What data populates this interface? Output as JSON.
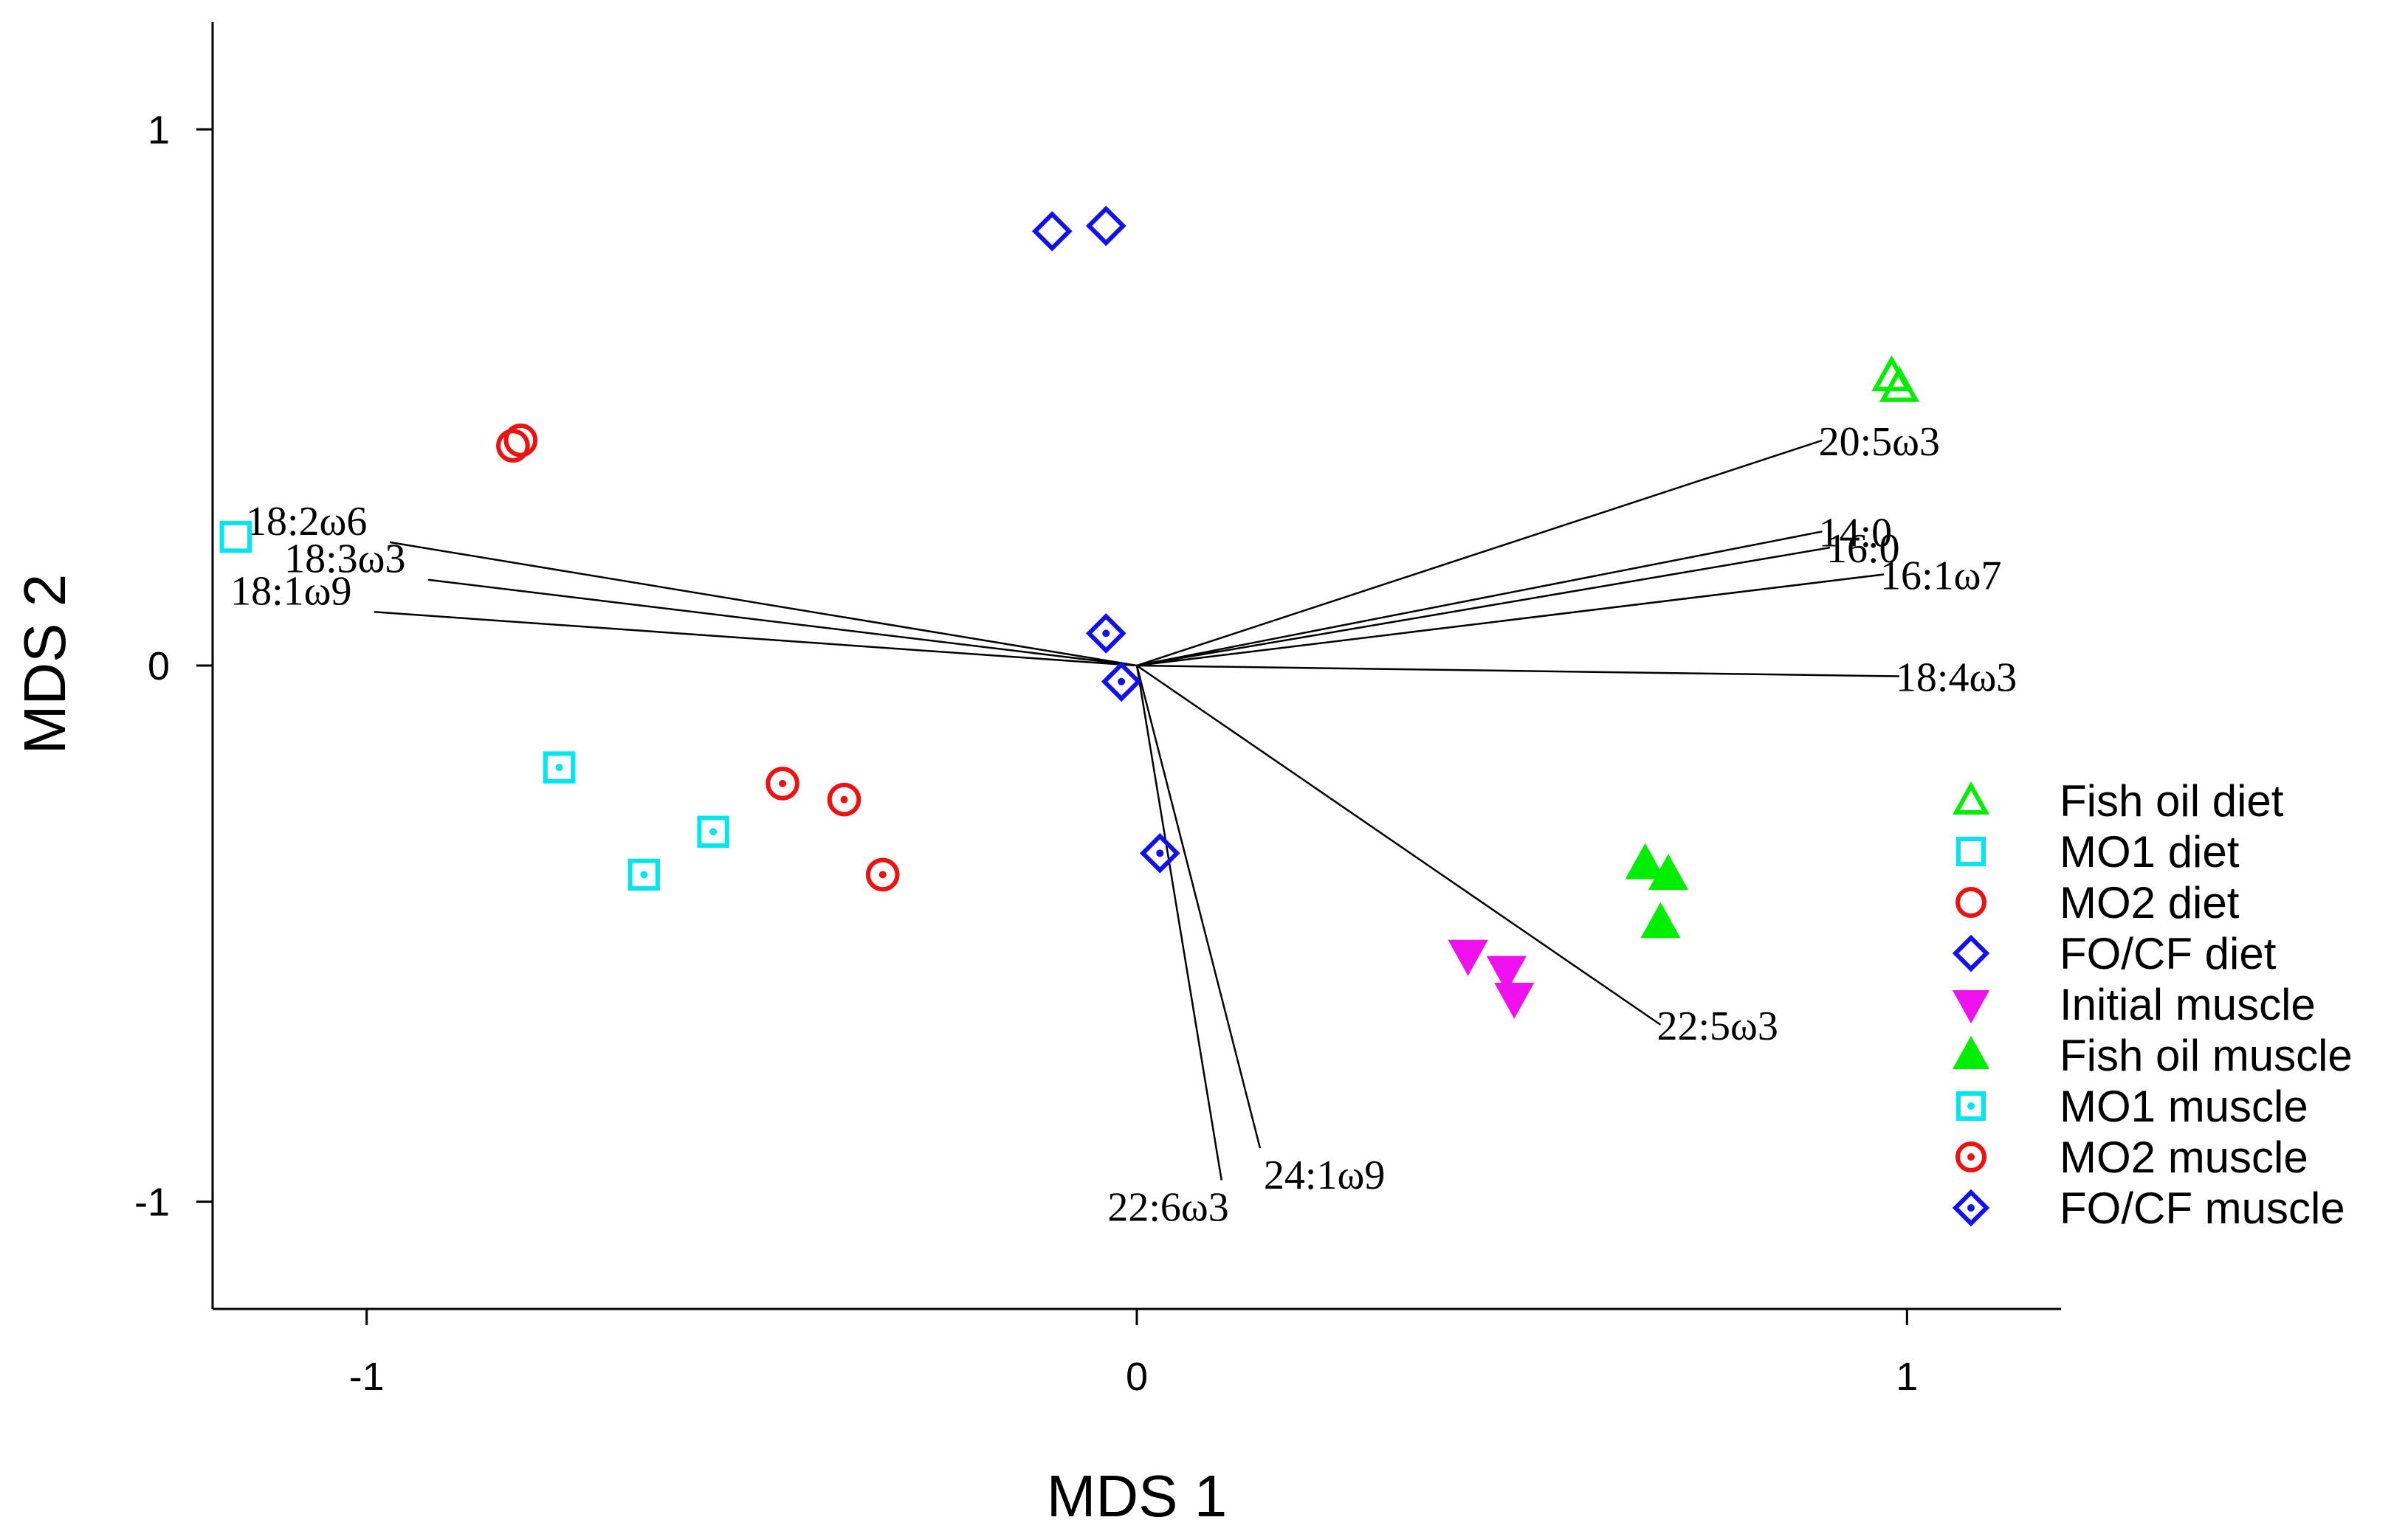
{
  "chart_data": {
    "type": "scatter",
    "title": "",
    "xlabel": "MDS 1",
    "ylabel": "MDS 2",
    "xlim": [
      -1.2,
      1.2
    ],
    "ylim": [
      -1.2,
      1.2
    ],
    "xticks": [
      {
        "value": -1,
        "label": "-1"
      },
      {
        "value": 0,
        "label": "0"
      },
      {
        "value": 1,
        "label": "1"
      }
    ],
    "yticks": [
      {
        "value": -1,
        "label": "-1"
      },
      {
        "value": 0,
        "label": "0"
      },
      {
        "value": 1,
        "label": "1"
      }
    ],
    "grid": false,
    "legend_position": "right",
    "series": [
      {
        "name": "Fish oil diet",
        "marker": "triangle-up",
        "filled": false,
        "color": "#00ee00",
        "points": [
          [
            0.98,
            0.54
          ],
          [
            0.99,
            0.52
          ]
        ]
      },
      {
        "name": "MO1 diet",
        "marker": "square",
        "filled": false,
        "color": "#00e5ee",
        "points": [
          [
            -1.17,
            0.24
          ]
        ]
      },
      {
        "name": "MO2 diet",
        "marker": "circle",
        "filled": false,
        "color": "#ee1111",
        "points": [
          [
            -0.81,
            0.41
          ],
          [
            -0.8,
            0.42
          ]
        ]
      },
      {
        "name": "FO/CF diet",
        "marker": "diamond",
        "filled": false,
        "color": "#1111ee",
        "points": [
          [
            -0.11,
            0.81
          ],
          [
            -0.04,
            0.82
          ]
        ]
      },
      {
        "name": "Initial muscle",
        "marker": "triangle-down",
        "filled": true,
        "color": "#ee11ee",
        "points": [
          [
            0.43,
            -0.54
          ],
          [
            0.48,
            -0.57
          ],
          [
            0.49,
            -0.62
          ]
        ]
      },
      {
        "name": "Fish oil muscle",
        "marker": "triangle-up",
        "filled": true,
        "color": "#00ee00",
        "points": [
          [
            0.66,
            -0.37
          ],
          [
            0.69,
            -0.39
          ],
          [
            0.68,
            -0.48
          ]
        ]
      },
      {
        "name": "MO1 muscle",
        "marker": "square-dot",
        "filled": false,
        "color": "#00e5ee",
        "points": [
          [
            -0.75,
            -0.19
          ],
          [
            -0.55,
            -0.31
          ],
          [
            -0.64,
            -0.39
          ]
        ]
      },
      {
        "name": "MO2 muscle",
        "marker": "circle-dot",
        "filled": false,
        "color": "#ee1111",
        "points": [
          [
            -0.46,
            -0.22
          ],
          [
            -0.38,
            -0.25
          ],
          [
            -0.33,
            -0.39
          ]
        ]
      },
      {
        "name": "FO/CF muscle",
        "marker": "diamond-dot",
        "filled": false,
        "color": "#1111ee",
        "points": [
          [
            -0.04,
            0.06
          ],
          [
            -0.02,
            -0.03
          ],
          [
            0.03,
            -0.35
          ]
        ]
      }
    ],
    "vectors": [
      {
        "label": "20:5ω3",
        "x": 0.89,
        "y": 0.42
      },
      {
        "label": "14:0",
        "x": 0.89,
        "y": 0.25
      },
      {
        "label": "16:0",
        "x": 0.9,
        "y": 0.22
      },
      {
        "label": "16:1ω7",
        "x": 0.97,
        "y": 0.17
      },
      {
        "label": "18:4ω3",
        "x": 0.99,
        "y": -0.02
      },
      {
        "label": "22:5ω3",
        "x": 0.68,
        "y": -0.67
      },
      {
        "label": "24:1ω9",
        "x": 0.16,
        "y": -0.9
      },
      {
        "label": "22:6ω3",
        "x": 0.11,
        "y": -0.96
      },
      {
        "label": "18:2ω6",
        "x": -0.97,
        "y": 0.23
      },
      {
        "label": "18:3ω3",
        "x": -0.92,
        "y": 0.16
      },
      {
        "label": "18:1ω9",
        "x": -0.99,
        "y": 0.1
      }
    ]
  }
}
